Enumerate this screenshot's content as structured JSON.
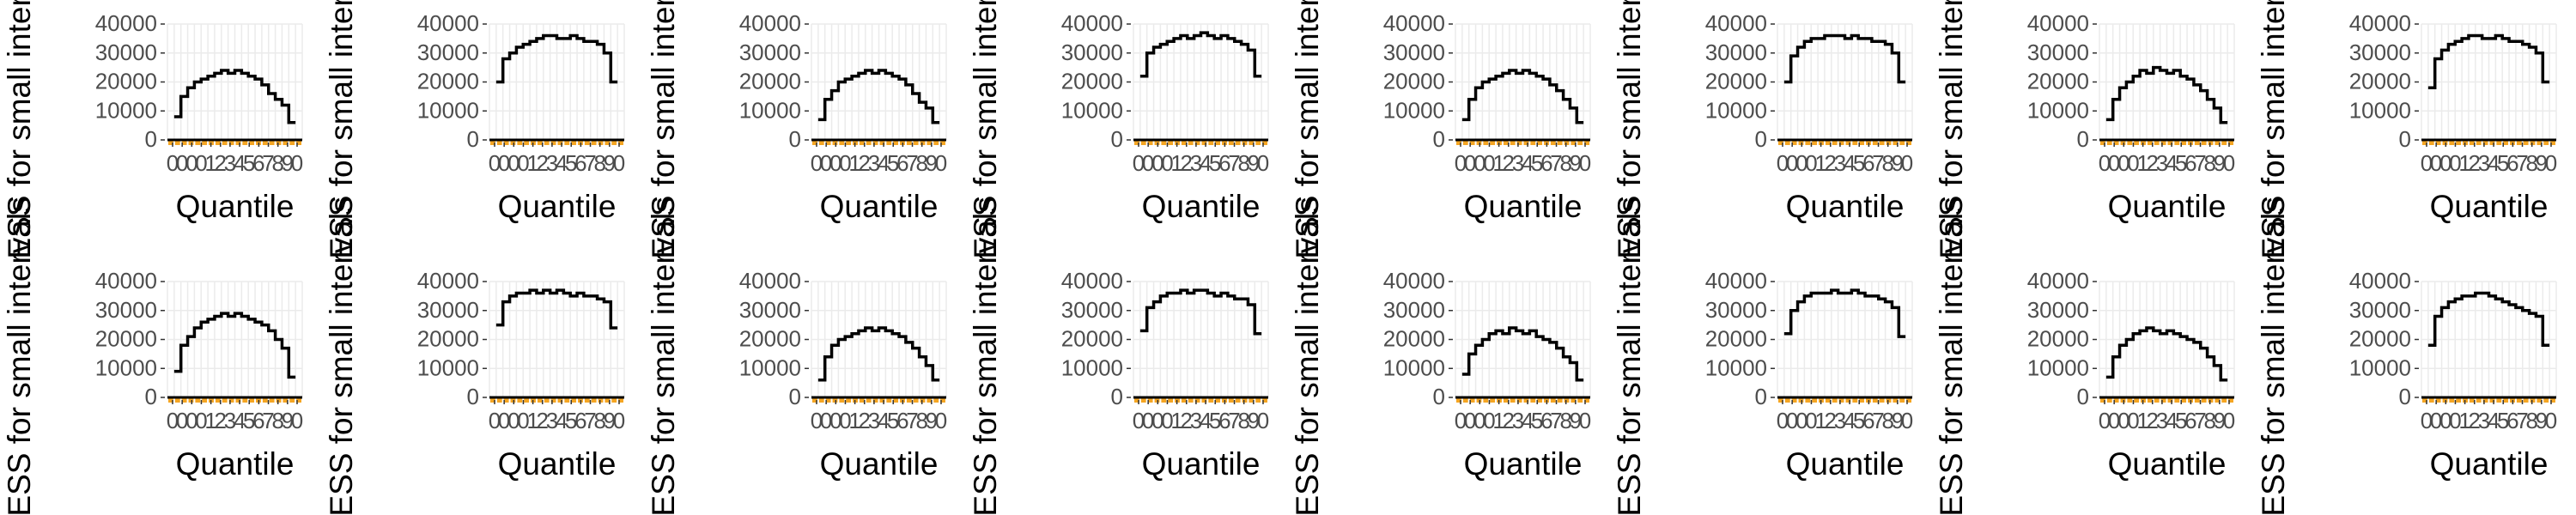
{
  "colors": {
    "stair_line": "#000000",
    "bars": "#f5a623",
    "grid": "#ebebeb",
    "text": "#4d4d4d"
  },
  "axes": {
    "ylabel": "ESS for small intervals",
    "xlabel": "Quantile",
    "yticks": [
      "0",
      "10000",
      "20000",
      "30000",
      "40000"
    ],
    "xticks": [
      "0",
      "0",
      "0",
      "0",
      "1",
      "2",
      "3",
      "4",
      "5",
      "6",
      "7",
      "8",
      "9",
      "0"
    ]
  },
  "chart_data": [
    {
      "type": "line",
      "ylim": [
        0,
        40000
      ],
      "series": [
        {
          "values": [
            8000,
            15000,
            18000,
            20000,
            21000,
            22000,
            23000,
            24000,
            23000,
            24000,
            23000,
            22000,
            21000,
            19000,
            16000,
            14000,
            12000,
            6000
          ]
        }
      ],
      "bars": {
        "values": [
          400,
          400,
          400,
          400,
          400,
          400,
          400,
          400,
          400,
          400,
          400,
          400,
          400,
          400,
          400,
          400,
          400,
          400,
          400,
          400
        ]
      }
    },
    {
      "type": "line",
      "ylim": [
        0,
        40000
      ],
      "series": [
        {
          "values": [
            20000,
            28000,
            30000,
            32000,
            33000,
            34000,
            35000,
            36000,
            36000,
            35000,
            35000,
            36000,
            35000,
            34000,
            34000,
            33000,
            30000,
            20000
          ]
        }
      ],
      "bars": {
        "values": [
          400,
          400,
          400,
          400,
          400,
          400,
          400,
          400,
          400,
          400,
          400,
          400,
          400,
          400,
          400,
          400,
          400,
          400,
          400,
          400
        ]
      }
    },
    {
      "type": "line",
      "ylim": [
        0,
        40000
      ],
      "series": [
        {
          "values": [
            7000,
            14000,
            17000,
            20000,
            21000,
            22000,
            23000,
            24000,
            23000,
            24000,
            23000,
            22000,
            21000,
            19000,
            16000,
            13000,
            11000,
            6000
          ]
        }
      ],
      "bars": {
        "values": [
          400,
          400,
          400,
          400,
          400,
          400,
          400,
          400,
          400,
          400,
          400,
          400,
          400,
          400,
          400,
          400,
          400,
          400,
          400,
          400
        ]
      }
    },
    {
      "type": "line",
      "ylim": [
        0,
        40000
      ],
      "series": [
        {
          "values": [
            22000,
            30000,
            32000,
            33000,
            34000,
            35000,
            36000,
            35000,
            36000,
            37000,
            36000,
            35000,
            36000,
            35000,
            34000,
            33000,
            31000,
            22000
          ]
        }
      ],
      "bars": {
        "values": [
          400,
          400,
          400,
          400,
          400,
          400,
          400,
          400,
          400,
          400,
          400,
          400,
          400,
          400,
          400,
          400,
          400,
          400,
          400,
          400
        ]
      }
    },
    {
      "type": "line",
      "ylim": [
        0,
        40000
      ],
      "series": [
        {
          "values": [
            7000,
            14000,
            18000,
            20000,
            21000,
            22000,
            23000,
            24000,
            23000,
            24000,
            23000,
            22000,
            21000,
            19000,
            17000,
            14000,
            11000,
            6000
          ]
        }
      ],
      "bars": {
        "values": [
          400,
          400,
          400,
          400,
          400,
          400,
          400,
          400,
          400,
          400,
          400,
          400,
          400,
          400,
          400,
          400,
          400,
          400,
          400,
          400
        ]
      }
    },
    {
      "type": "line",
      "ylim": [
        0,
        40000
      ],
      "series": [
        {
          "values": [
            20000,
            29000,
            32000,
            34000,
            35000,
            35000,
            36000,
            36000,
            36000,
            35000,
            36000,
            35000,
            35000,
            34000,
            34000,
            33000,
            30000,
            20000
          ]
        }
      ],
      "bars": {
        "values": [
          400,
          400,
          400,
          400,
          400,
          400,
          400,
          400,
          400,
          400,
          400,
          400,
          400,
          400,
          400,
          400,
          400,
          400,
          400,
          400
        ]
      }
    },
    {
      "type": "line",
      "ylim": [
        0,
        40000
      ],
      "series": [
        {
          "values": [
            7000,
            14000,
            18000,
            20000,
            22000,
            24000,
            23000,
            25000,
            24000,
            23000,
            24000,
            22000,
            21000,
            19000,
            17000,
            14000,
            11000,
            6000
          ]
        }
      ],
      "bars": {
        "values": [
          400,
          400,
          400,
          400,
          400,
          400,
          400,
          400,
          400,
          400,
          400,
          400,
          400,
          400,
          400,
          400,
          400,
          400,
          400,
          400
        ]
      }
    },
    {
      "type": "line",
      "ylim": [
        0,
        40000
      ],
      "series": [
        {
          "values": [
            18000,
            28000,
            31000,
            33000,
            34000,
            35000,
            36000,
            36000,
            35000,
            35000,
            36000,
            35000,
            34000,
            34000,
            33000,
            32000,
            30000,
            20000
          ]
        }
      ],
      "bars": {
        "values": [
          400,
          400,
          400,
          400,
          400,
          400,
          400,
          400,
          400,
          400,
          400,
          400,
          400,
          400,
          400,
          400,
          400,
          400,
          400,
          400
        ]
      }
    },
    {
      "type": "line",
      "ylim": [
        0,
        40000
      ],
      "series": [
        {
          "values": [
            9000,
            18000,
            21000,
            24000,
            26000,
            27000,
            28000,
            29000,
            28000,
            29000,
            28000,
            27000,
            26000,
            25000,
            23000,
            20000,
            17000,
            7000
          ]
        }
      ],
      "bars": {
        "values": [
          400,
          400,
          400,
          400,
          400,
          400,
          400,
          400,
          400,
          400,
          400,
          400,
          400,
          400,
          400,
          400,
          400,
          400,
          400,
          400
        ]
      }
    },
    {
      "type": "line",
      "ylim": [
        0,
        40000
      ],
      "series": [
        {
          "values": [
            25000,
            33000,
            35000,
            36000,
            36000,
            37000,
            36000,
            37000,
            36000,
            37000,
            36000,
            35000,
            36000,
            35000,
            35000,
            34000,
            33000,
            24000
          ]
        }
      ],
      "bars": {
        "values": [
          400,
          400,
          400,
          400,
          400,
          400,
          400,
          400,
          400,
          400,
          400,
          400,
          400,
          400,
          400,
          400,
          400,
          400,
          400,
          400
        ]
      }
    },
    {
      "type": "line",
      "ylim": [
        0,
        40000
      ],
      "series": [
        {
          "values": [
            6000,
            14000,
            18000,
            20000,
            21000,
            22000,
            23000,
            24000,
            23000,
            24000,
            23000,
            22000,
            21000,
            19000,
            17000,
            14000,
            11000,
            6000
          ]
        }
      ],
      "bars": {
        "values": [
          400,
          400,
          400,
          400,
          400,
          400,
          400,
          400,
          400,
          400,
          400,
          400,
          400,
          400,
          400,
          400,
          400,
          400,
          400,
          400
        ]
      }
    },
    {
      "type": "line",
      "ylim": [
        0,
        40000
      ],
      "series": [
        {
          "values": [
            23000,
            31000,
            33000,
            35000,
            36000,
            36000,
            37000,
            36000,
            37000,
            37000,
            36000,
            35000,
            36000,
            35000,
            34000,
            34000,
            32000,
            22000
          ]
        }
      ],
      "bars": {
        "values": [
          400,
          400,
          400,
          400,
          400,
          400,
          400,
          400,
          400,
          400,
          400,
          400,
          400,
          400,
          400,
          400,
          400,
          400,
          400,
          400
        ]
      }
    },
    {
      "type": "line",
      "ylim": [
        0,
        40000
      ],
      "series": [
        {
          "values": [
            8000,
            15000,
            18000,
            20000,
            22000,
            23000,
            22000,
            24000,
            23000,
            22000,
            23000,
            21000,
            20000,
            19000,
            17000,
            14000,
            12000,
            6000
          ]
        }
      ],
      "bars": {
        "values": [
          400,
          400,
          400,
          400,
          400,
          400,
          400,
          400,
          400,
          400,
          400,
          400,
          400,
          400,
          400,
          400,
          400,
          400,
          400,
          400
        ]
      }
    },
    {
      "type": "line",
      "ylim": [
        0,
        40000
      ],
      "series": [
        {
          "values": [
            22000,
            30000,
            33000,
            35000,
            36000,
            36000,
            36000,
            37000,
            36000,
            36000,
            37000,
            36000,
            35000,
            35000,
            34000,
            33000,
            31000,
            21000
          ]
        }
      ],
      "bars": {
        "values": [
          400,
          400,
          400,
          400,
          400,
          400,
          400,
          400,
          400,
          400,
          400,
          400,
          400,
          400,
          400,
          400,
          400,
          400,
          400,
          400
        ]
      }
    },
    {
      "type": "line",
      "ylim": [
        0,
        40000
      ],
      "series": [
        {
          "values": [
            7000,
            14000,
            18000,
            20000,
            22000,
            23000,
            24000,
            23000,
            22000,
            23000,
            22000,
            21000,
            20000,
            19000,
            17000,
            14000,
            11000,
            6000
          ]
        }
      ],
      "bars": {
        "values": [
          400,
          400,
          400,
          400,
          400,
          400,
          400,
          400,
          400,
          400,
          400,
          400,
          400,
          400,
          400,
          400,
          400,
          400,
          400,
          400
        ]
      }
    },
    {
      "type": "line",
      "ylim": [
        0,
        40000
      ],
      "series": [
        {
          "values": [
            18000,
            28000,
            31000,
            33000,
            34000,
            35000,
            35000,
            36000,
            36000,
            35000,
            34000,
            33000,
            32000,
            31000,
            30000,
            29000,
            28000,
            18000
          ]
        }
      ],
      "bars": {
        "values": [
          400,
          400,
          400,
          400,
          400,
          400,
          400,
          400,
          400,
          400,
          400,
          400,
          400,
          400,
          400,
          400,
          400,
          400,
          400,
          400
        ]
      }
    }
  ]
}
